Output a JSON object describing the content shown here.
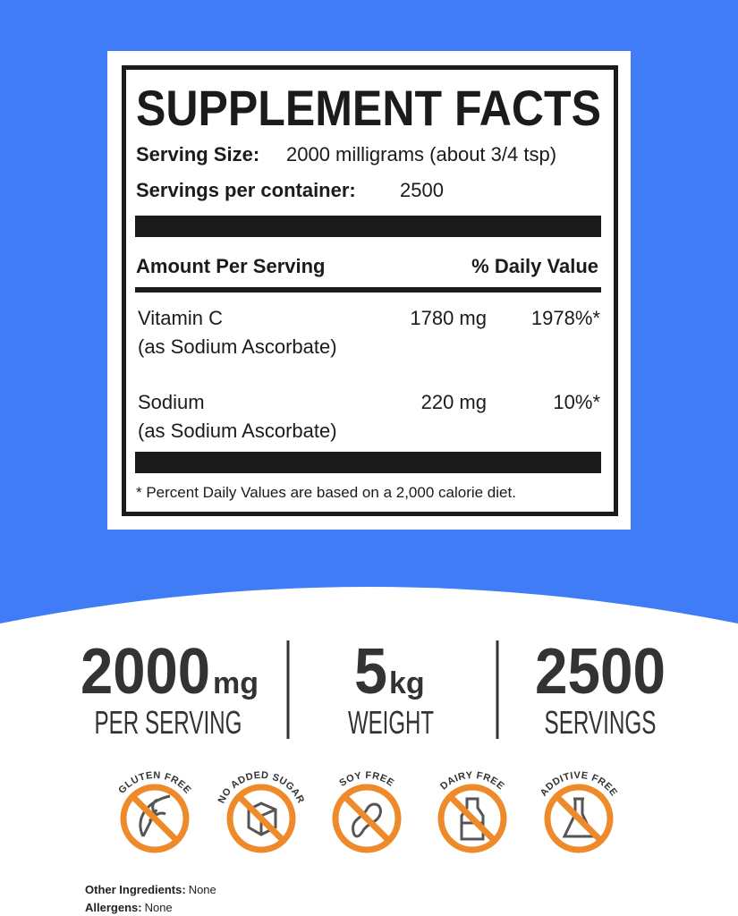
{
  "label": {
    "title": "SUPPLEMENT FACTS",
    "serving_size": {
      "label": "Serving Size:",
      "value": "2000 milligrams (about 3/4 tsp)"
    },
    "servings_per_container": {
      "label": "Servings per container:",
      "value": "2500"
    },
    "header": {
      "amount": "Amount Per Serving",
      "daily_value": "% Daily Value"
    },
    "rows": [
      {
        "name": "Vitamin C",
        "source": "(as Sodium Ascorbate)",
        "amount": "1780 mg",
        "daily_value": "1978%*"
      },
      {
        "name": "Sodium",
        "source": "(as Sodium Ascorbate)",
        "amount": "220 mg",
        "daily_value": "10%*"
      }
    ],
    "footnote": "*  Percent Daily Values are based on a 2,000 calorie diet."
  },
  "stats": [
    {
      "number": "2000",
      "unit": "mg",
      "label": "PER SERVING"
    },
    {
      "number": "5",
      "unit": "kg",
      "label": "WEIGHT"
    },
    {
      "number": "2500",
      "label": "SERVINGS"
    }
  ],
  "badges": [
    "GLUTEN FREE",
    "NO ADDED SUGAR",
    "SOY FREE",
    "DAIRY FREE",
    "ADDITIVE FREE"
  ],
  "details": [
    {
      "label": "Other Ingredients:",
      "value": "None"
    },
    {
      "label": "Allergens:",
      "value": "None"
    }
  ]
}
